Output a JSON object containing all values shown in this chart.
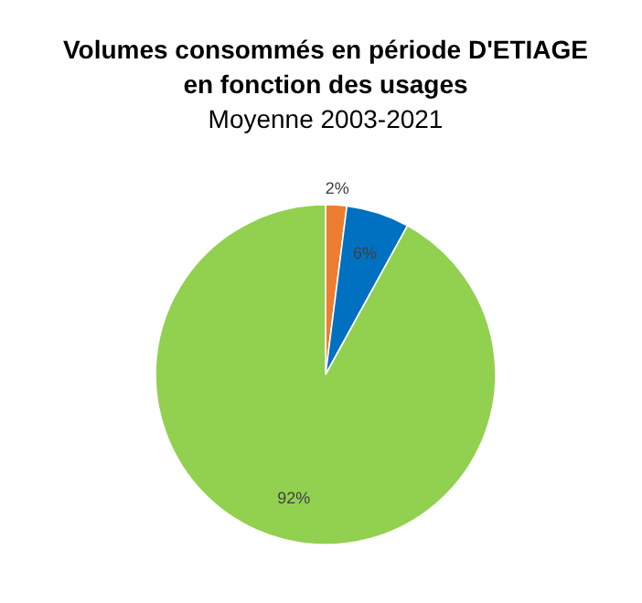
{
  "chart_data": {
    "type": "pie",
    "title": "Volumes consommés en période D'ETIAGE\nen fonction des usages",
    "subtitle": "Moyenne 2003-2021",
    "categories": [
      null,
      null,
      null
    ],
    "values": [
      2,
      6,
      92
    ],
    "colors": [
      "#ed7d31",
      "#0070c0",
      "#92d050"
    ],
    "value_labels": [
      "2%",
      "6%",
      "92%"
    ]
  }
}
